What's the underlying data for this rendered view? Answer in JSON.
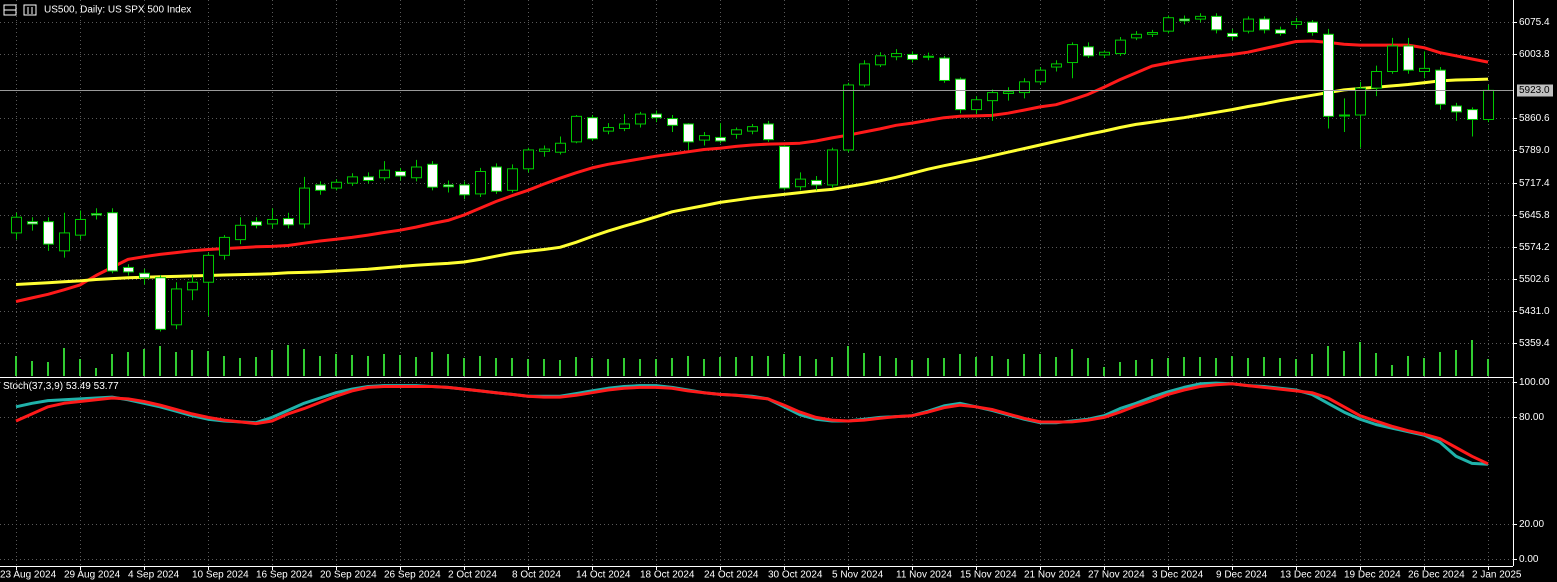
{
  "chart_data": [
    {
      "type": "candlestick",
      "title": "US500, Daily:  US SPX 500 Index",
      "x": [
        "23 Aug 2024",
        null,
        null,
        null,
        "29 Aug 2024",
        null,
        null,
        null,
        "4 Sep 2024",
        null,
        null,
        null,
        "10 Sep 2024",
        null,
        null,
        null,
        "16 Sep 2024",
        null,
        null,
        null,
        "20 Sep 2024",
        null,
        null,
        null,
        "26 Sep 2024",
        null,
        null,
        null,
        "2 Oct 2024",
        null,
        null,
        null,
        "8 Oct 2024",
        null,
        null,
        null,
        "14 Oct 2024",
        null,
        null,
        null,
        "18 Oct 2024",
        null,
        null,
        null,
        "24 Oct 2024",
        null,
        null,
        null,
        "30 Oct 2024",
        null,
        null,
        null,
        "5 Nov 2024",
        null,
        null,
        null,
        "11 Nov 2024",
        null,
        null,
        null,
        "15 Nov 2024",
        null,
        null,
        null,
        "21 Nov 2024",
        null,
        null,
        null,
        "27 Nov 2024",
        null,
        null,
        null,
        "3 Dec 2024",
        null,
        null,
        null,
        "9 Dec 2024",
        null,
        null,
        null,
        "13 Dec 2024",
        null,
        null,
        null,
        "19 Dec 2024",
        null,
        null,
        null,
        "26 Dec 2024",
        null,
        null,
        null,
        "2 Jan 2025"
      ],
      "open": [
        5605,
        5630,
        5630,
        5565,
        5600,
        5648,
        5650,
        5528,
        5515,
        5505,
        5400,
        5478,
        5495,
        5555,
        5590,
        5630,
        5625,
        5637,
        5625,
        5712,
        5705,
        5716,
        5730,
        5728,
        5742,
        5728,
        5758,
        5712,
        5712,
        5692,
        5752,
        5700,
        5748,
        5787,
        5785,
        5808,
        5862,
        5832,
        5838,
        5848,
        5870,
        5860,
        5848,
        5812,
        5818,
        5825,
        5832,
        5848,
        5798,
        5708,
        5722,
        5712,
        5790,
        5935,
        5980,
        5998,
        6003,
        5998,
        5995,
        5948,
        5880,
        5900,
        5916,
        5918,
        5942,
        5975,
        5985,
        6020,
        6002,
        6005,
        6040,
        6048,
        6055,
        6082,
        6082,
        6088,
        6050,
        6055,
        6082,
        6058,
        6070,
        6075,
        6048,
        5868,
        5868,
        5928,
        5965,
        6022,
        5965,
        5968,
        5888,
        5880,
        5858
      ],
      "high": [
        5650,
        5640,
        5640,
        5650,
        5655,
        5660,
        5660,
        5535,
        5525,
        5510,
        5495,
        5510,
        5560,
        5600,
        5640,
        5640,
        5660,
        5650,
        5730,
        5720,
        5725,
        5738,
        5740,
        5765,
        5750,
        5768,
        5765,
        5722,
        5720,
        5750,
        5760,
        5758,
        5795,
        5800,
        5820,
        5868,
        5868,
        5850,
        5870,
        5875,
        5878,
        5868,
        5850,
        5830,
        5850,
        5840,
        5848,
        5855,
        5800,
        5740,
        5732,
        5795,
        5940,
        5990,
        6008,
        6015,
        6010,
        6007,
        6000,
        5952,
        5910,
        5925,
        5930,
        5950,
        5975,
        5990,
        6030,
        6030,
        6012,
        6042,
        6055,
        6058,
        6090,
        6090,
        6095,
        6095,
        6060,
        6088,
        6088,
        6065,
        6085,
        6080,
        6060,
        5905,
        5942,
        5978,
        6040,
        6040,
        6010,
        5975,
        5895,
        5885,
        5935
      ],
      "low": [
        5590,
        5610,
        5565,
        5550,
        5590,
        5635,
        5515,
        5510,
        5490,
        5385,
        5390,
        5455,
        5420,
        5545,
        5580,
        5615,
        5615,
        5615,
        5615,
        5690,
        5700,
        5710,
        5715,
        5722,
        5722,
        5720,
        5700,
        5695,
        5680,
        5685,
        5692,
        5695,
        5740,
        5775,
        5780,
        5805,
        5810,
        5825,
        5832,
        5840,
        5852,
        5830,
        5790,
        5800,
        5805,
        5815,
        5825,
        5808,
        5700,
        5700,
        5700,
        5705,
        5785,
        5930,
        5975,
        5990,
        5985,
        5990,
        5940,
        5872,
        5870,
        5855,
        5900,
        5905,
        5935,
        5965,
        5950,
        5995,
        5995,
        6000,
        6035,
        6042,
        6050,
        6070,
        6075,
        6050,
        6035,
        6050,
        6050,
        6045,
        6062,
        6045,
        5838,
        5830,
        5795,
        5910,
        5960,
        5960,
        5950,
        5880,
        5855,
        5820,
        5852
      ],
      "close": [
        5640,
        5625,
        5580,
        5605,
        5635,
        5645,
        5520,
        5518,
        5505,
        5390,
        5480,
        5495,
        5555,
        5595,
        5622,
        5622,
        5635,
        5623,
        5705,
        5700,
        5718,
        5730,
        5722,
        5745,
        5732,
        5752,
        5707,
        5708,
        5690,
        5742,
        5698,
        5748,
        5790,
        5792,
        5805,
        5865,
        5815,
        5840,
        5848,
        5870,
        5862,
        5845,
        5808,
        5822,
        5810,
        5835,
        5842,
        5813,
        5705,
        5725,
        5712,
        5790,
        5935,
        5982,
        6000,
        6005,
        5992,
        5999,
        5945,
        5880,
        5902,
        5918,
        5920,
        5942,
        5968,
        5982,
        6025,
        6000,
        6008,
        6035,
        6048,
        6052,
        6085,
        6078,
        6088,
        6058,
        6043,
        6082,
        6058,
        6050,
        6076,
        6052,
        5865,
        5866,
        5928,
        5965,
        6022,
        5968,
        5972,
        5892,
        5875,
        5858,
        5923
      ],
      "volume": [
        20,
        15,
        14,
        28,
        17,
        8,
        22,
        24,
        27,
        30,
        24,
        26,
        25,
        20,
        18,
        19,
        26,
        31,
        27,
        20,
        22,
        21,
        20,
        22,
        21,
        19,
        24,
        22,
        18,
        20,
        18,
        18,
        17,
        17,
        16,
        19,
        18,
        17,
        18,
        17,
        17,
        18,
        20,
        17,
        19,
        19,
        20,
        20,
        22,
        20,
        17,
        19,
        30,
        23,
        20,
        18,
        16,
        18,
        18,
        22,
        19,
        20,
        17,
        22,
        22,
        19,
        27,
        18,
        9,
        14,
        16,
        17,
        18,
        19,
        19,
        18,
        20,
        18,
        19,
        18,
        17,
        22,
        30,
        25,
        34,
        23,
        11,
        20,
        18,
        24,
        26,
        36,
        17
      ],
      "bull_color": "#00c800",
      "bear_color": "#ffffff",
      "volume_color": "#32cd32",
      "series": [
        {
          "color": "#ff1a1a",
          "values": [
            5452,
            5460,
            5468,
            5478,
            5489,
            5510,
            5528,
            5546,
            5552,
            5557,
            5561,
            5565,
            5568,
            5570,
            5572,
            5574,
            5575,
            5577,
            5582,
            5587,
            5591,
            5595,
            5600,
            5606,
            5611,
            5618,
            5626,
            5633,
            5645,
            5660,
            5675,
            5688,
            5700,
            5714,
            5727,
            5739,
            5750,
            5758,
            5764,
            5770,
            5776,
            5781,
            5786,
            5791,
            5794,
            5798,
            5801,
            5803,
            5804,
            5805,
            5810,
            5817,
            5823,
            5830,
            5837,
            5845,
            5850,
            5856,
            5862,
            5865,
            5866,
            5867,
            5872,
            5879,
            5886,
            5891,
            5902,
            5914,
            5930,
            5947,
            5962,
            5977,
            5984,
            5990,
            5995,
            5999,
            6003,
            6008,
            6016,
            6024,
            6032,
            6033,
            6030,
            6026,
            6024,
            6024,
            6024,
            6024,
            6018,
            6007,
            6000,
            5993,
            5986
          ]
        },
        {
          "color": "#ffff33",
          "values": [
            5490,
            5492,
            5494,
            5496,
            5498,
            5501,
            5503,
            5505,
            5506,
            5507,
            5508,
            5509,
            5510,
            5511,
            5512,
            5513,
            5514,
            5516,
            5517,
            5518,
            5520,
            5522,
            5524,
            5527,
            5530,
            5533,
            5535,
            5537,
            5540,
            5546,
            5553,
            5560,
            5564,
            5568,
            5573,
            5584,
            5597,
            5609,
            5620,
            5630,
            5641,
            5652,
            5659,
            5666,
            5673,
            5678,
            5683,
            5687,
            5691,
            5695,
            5699,
            5702,
            5708,
            5714,
            5721,
            5729,
            5738,
            5747,
            5755,
            5762,
            5769,
            5777,
            5785,
            5793,
            5801,
            5809,
            5817,
            5825,
            5832,
            5840,
            5847,
            5852,
            5857,
            5862,
            5868,
            5874,
            5880,
            5887,
            5893,
            5900,
            5906,
            5912,
            5918,
            5924,
            5927,
            5930,
            5933,
            5936,
            5940,
            5944,
            5946,
            5947,
            5948
          ]
        }
      ],
      "current_price": {
        "value": 5923,
        "label": "5923.0"
      },
      "ylim": [
        5283.6,
        6124.5
      ],
      "yticks": [
        6075.4,
        6003.8,
        5860.6,
        {
          "value": 5789,
          "label": "5789.0"
        },
        5717.4,
        5645.8,
        5574.2,
        5502.6,
        {
          "value": 5431,
          "label": "5431.0"
        },
        5359.4
      ],
      "grid": true
    },
    {
      "type": "stochastic",
      "title": "Stoch(37,3,9)",
      "series": [
        {
          "color": "#20b2aa",
          "values": [
            86,
            88,
            89.5,
            90,
            90.5,
            91,
            91.5,
            90,
            88,
            86,
            83.5,
            81,
            79,
            78,
            77.5,
            77,
            80,
            84,
            88,
            91,
            94,
            96,
            97.5,
            98,
            98,
            98,
            97.5,
            97,
            96,
            95,
            94,
            93,
            92,
            92,
            92,
            93.5,
            95,
            96.5,
            97.5,
            98,
            98,
            97,
            95.5,
            94,
            93,
            92.5,
            92,
            90.5,
            86,
            81.5,
            79,
            78,
            78,
            79,
            80,
            80.5,
            81,
            83.5,
            86.5,
            88,
            86,
            84,
            81.5,
            79,
            77,
            77,
            78,
            79,
            81,
            85,
            88,
            91.5,
            94.5,
            97,
            99,
            99.4,
            99,
            98,
            97.5,
            96.5,
            95.5,
            93,
            88,
            83,
            79,
            76,
            74,
            72,
            70,
            66,
            58,
            54,
            53.49
          ]
        },
        {
          "color": "#ff1a1a",
          "values": [
            78,
            82,
            86,
            88,
            89,
            90,
            91,
            90.5,
            89,
            87,
            84.5,
            82,
            80,
            78.5,
            77.5,
            76.5,
            78,
            82,
            85,
            88.5,
            92,
            95,
            97,
            97.5,
            97.5,
            97.5,
            97.5,
            97,
            96,
            95,
            94,
            93,
            92,
            91.5,
            91.5,
            92.5,
            94,
            95.5,
            96.5,
            97,
            97,
            96.5,
            95,
            94,
            93,
            92.5,
            91.5,
            90.5,
            87,
            83,
            80,
            78.5,
            78,
            78.5,
            79.5,
            80.5,
            81,
            83,
            85.5,
            87,
            86,
            84.5,
            82,
            79.5,
            77.5,
            77.4,
            77.5,
            78.5,
            80,
            83,
            86.5,
            89.5,
            93,
            95.5,
            97.5,
            98.5,
            99,
            98,
            97,
            96,
            95,
            94,
            91,
            86,
            81,
            78,
            75,
            72.5,
            70.5,
            68,
            63,
            58,
            53.77
          ]
        }
      ],
      "ylim": [
        -4,
        102.3
      ],
      "yticks": [
        {
          "value": 100,
          "label": "100.00"
        },
        {
          "value": 80,
          "label": "80.00"
        },
        {
          "value": 20,
          "label": "20.00"
        },
        {
          "value": 0,
          "label": "0.00"
        }
      ],
      "grid": true
    }
  ]
}
